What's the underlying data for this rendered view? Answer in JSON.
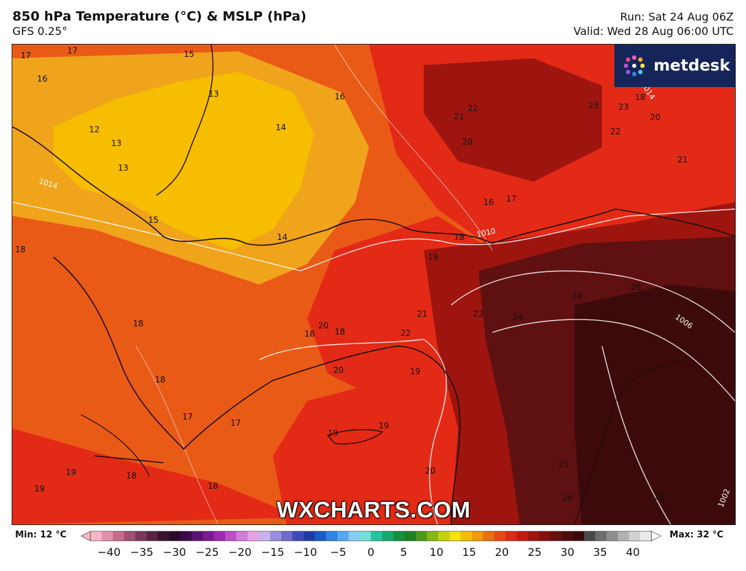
{
  "header": {
    "title": "850 hPa Temperature (°C) & MSLP (hPa)",
    "subtitle": "GFS 0.25°",
    "run": "Run: Sat 24 Aug 06Z",
    "valid": "Valid: Wed 28 Aug 06:00 UTC"
  },
  "logo": {
    "text": "metdesk"
  },
  "watermark": "WXCHARTS.COM",
  "colors": {
    "cool": "#f0a41c",
    "yellow": "#f7bd00",
    "orange": "#ea5a17",
    "red": "#e32a16",
    "darkred": "#9e150f",
    "maroon": "#5f1010",
    "deep": "#3c0a0a",
    "logo_bg": "#15255a"
  },
  "map": {
    "temperature_labels": [
      {
        "text": "17"
      },
      {
        "text": "17"
      },
      {
        "text": "15"
      },
      {
        "text": "16"
      },
      {
        "text": "12"
      },
      {
        "text": "13"
      },
      {
        "text": "13"
      },
      {
        "text": "13"
      },
      {
        "text": "14"
      },
      {
        "text": "16"
      },
      {
        "text": "22"
      },
      {
        "text": "21"
      },
      {
        "text": "20"
      },
      {
        "text": "23"
      },
      {
        "text": "23"
      },
      {
        "text": "22"
      },
      {
        "text": "18"
      },
      {
        "text": "20"
      },
      {
        "text": "21"
      },
      {
        "text": "15"
      },
      {
        "text": "14"
      },
      {
        "text": "16"
      },
      {
        "text": "17"
      },
      {
        "text": "18"
      },
      {
        "text": "19"
      },
      {
        "text": "18"
      },
      {
        "text": "18"
      },
      {
        "text": "20"
      },
      {
        "text": "18"
      },
      {
        "text": "18"
      },
      {
        "text": "21"
      },
      {
        "text": "22"
      },
      {
        "text": "22"
      },
      {
        "text": "24"
      },
      {
        "text": "26"
      },
      {
        "text": "26"
      },
      {
        "text": "20"
      },
      {
        "text": "19"
      },
      {
        "text": "18"
      },
      {
        "text": "17"
      },
      {
        "text": "17"
      },
      {
        "text": "19"
      },
      {
        "text": "19"
      },
      {
        "text": "19"
      },
      {
        "text": "18"
      },
      {
        "text": "18"
      },
      {
        "text": "19"
      },
      {
        "text": "20"
      },
      {
        "text": "25"
      },
      {
        "text": "26"
      },
      {
        "text": "28"
      }
    ],
    "isobar_labels": [
      {
        "text": "1014"
      },
      {
        "text": "1010"
      },
      {
        "text": "1006"
      },
      {
        "text": "1002"
      },
      {
        "text": "1014"
      }
    ]
  },
  "scale": {
    "min": "Min: 12 °C",
    "max": "Max: 32 °C",
    "ticks": [
      "−40",
      "−35",
      "−30",
      "−25",
      "−20",
      "−15",
      "−10",
      "−5",
      "0",
      "5",
      "10",
      "15",
      "20",
      "25",
      "30",
      "35",
      "40"
    ],
    "colors": [
      "#f7b6c8",
      "#e48fa8",
      "#c66a8a",
      "#a14f72",
      "#7c365b",
      "#5b2246",
      "#3d1231",
      "#2a0a2a",
      "#3a0b4a",
      "#5a1272",
      "#7b1a92",
      "#9c2ab0",
      "#bd4fc9",
      "#d47ad8",
      "#e6a3e4",
      "#c9b3ee",
      "#9b8fdf",
      "#6d6bcd",
      "#3f4aba",
      "#1d3aa6",
      "#1a5cc8",
      "#2c84e4",
      "#55a9f0",
      "#86cdf6",
      "#6fe0d4",
      "#23c5a0",
      "#14a86c",
      "#13923e",
      "#1d7e22",
      "#4c9a1a",
      "#87b714",
      "#c4d20e",
      "#f5e20b",
      "#f7bd00",
      "#f29a08",
      "#ea6f10",
      "#e54a14",
      "#dc2a16",
      "#c11a12",
      "#a1130f",
      "#83100d",
      "#66100d",
      "#4e0c0b",
      "#3a0909",
      "#4a4a4a",
      "#6e6e6e",
      "#8f8f8f",
      "#b1b1b1",
      "#d2d2d2",
      "#ececec"
    ]
  }
}
